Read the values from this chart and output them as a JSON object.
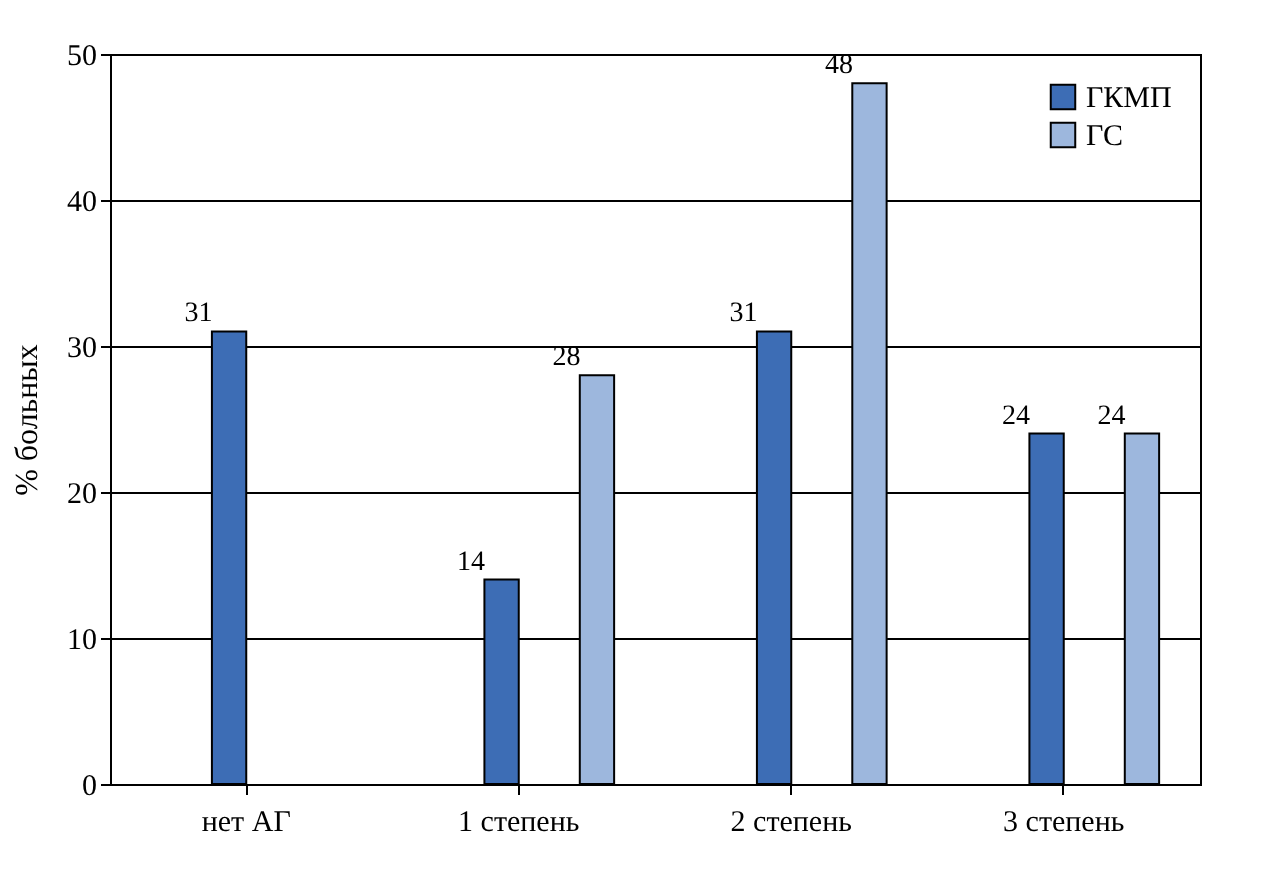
{
  "chart_data": {
    "type": "bar",
    "ylabel": "% больных",
    "categories": [
      "нет АГ",
      "1 степень",
      "2 степень",
      "3 степень"
    ],
    "series": [
      {
        "name": "ГКМП",
        "color": "#3d6db5",
        "values": [
          31,
          14,
          31,
          24
        ]
      },
      {
        "name": "ГС",
        "color": "#9db7dd",
        "values": [
          null,
          28,
          48,
          24
        ]
      }
    ],
    "ylim": [
      0,
      50
    ],
    "yticks": [
      0,
      10,
      20,
      30,
      40,
      50
    ],
    "grid": "y",
    "legend": "top right",
    "data_labels": true
  }
}
